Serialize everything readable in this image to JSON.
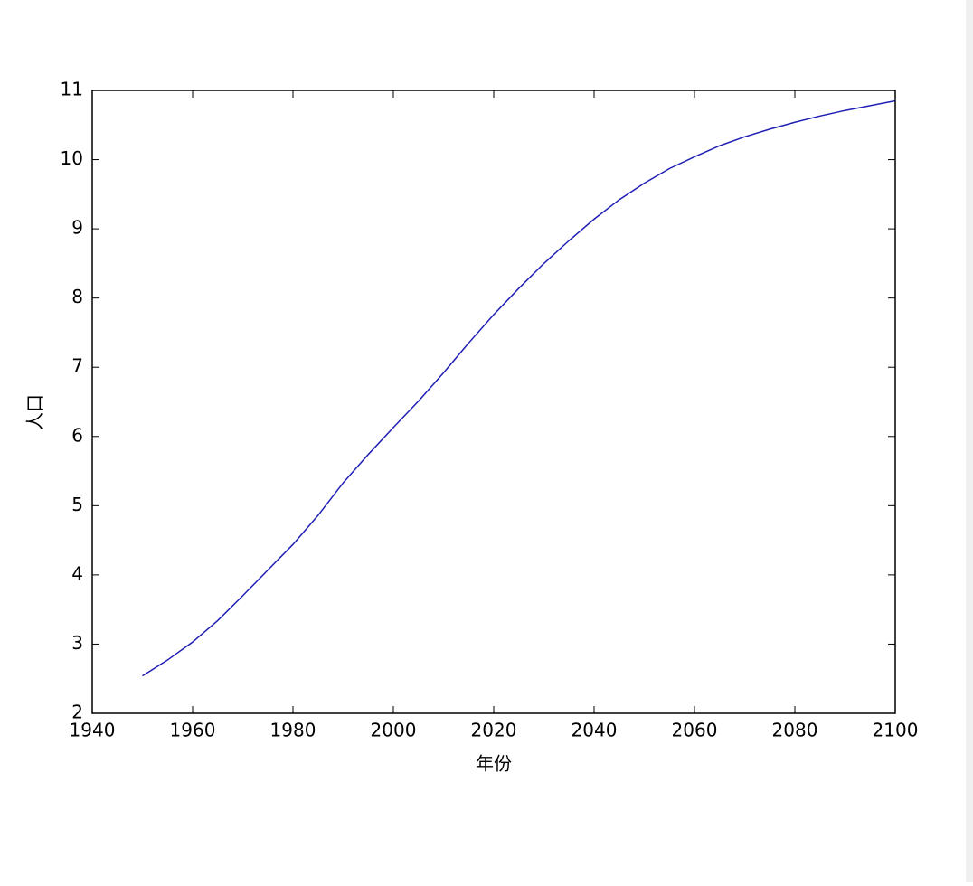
{
  "chart_data": {
    "type": "line",
    "x_label": "年份",
    "y_label": "人口",
    "x": [
      1950,
      1955,
      1960,
      1965,
      1970,
      1975,
      1980,
      1985,
      1990,
      1995,
      2000,
      2005,
      2010,
      2015,
      2020,
      2025,
      2030,
      2035,
      2040,
      2045,
      2050,
      2055,
      2060,
      2065,
      2070,
      2075,
      2080,
      2085,
      2090,
      2095,
      2100
    ],
    "series": [
      {
        "name": "人口",
        "color": "#1f1fb4",
        "values": [
          2.54,
          2.77,
          3.03,
          3.34,
          3.7,
          4.07,
          4.44,
          4.86,
          5.33,
          5.74,
          6.13,
          6.51,
          6.92,
          7.35,
          7.76,
          8.14,
          8.5,
          8.83,
          9.14,
          9.42,
          9.66,
          9.87,
          10.04,
          10.2,
          10.33,
          10.44,
          10.54,
          10.63,
          10.71,
          10.78,
          10.85
        ]
      }
    ],
    "xlim": [
      1940,
      2100
    ],
    "ylim": [
      2,
      11
    ],
    "xticks": [
      1940,
      1960,
      1980,
      2000,
      2020,
      2040,
      2060,
      2080,
      2100
    ],
    "yticks": [
      2,
      3,
      4,
      5,
      6,
      7,
      8,
      9,
      10,
      11
    ],
    "grid": false
  }
}
